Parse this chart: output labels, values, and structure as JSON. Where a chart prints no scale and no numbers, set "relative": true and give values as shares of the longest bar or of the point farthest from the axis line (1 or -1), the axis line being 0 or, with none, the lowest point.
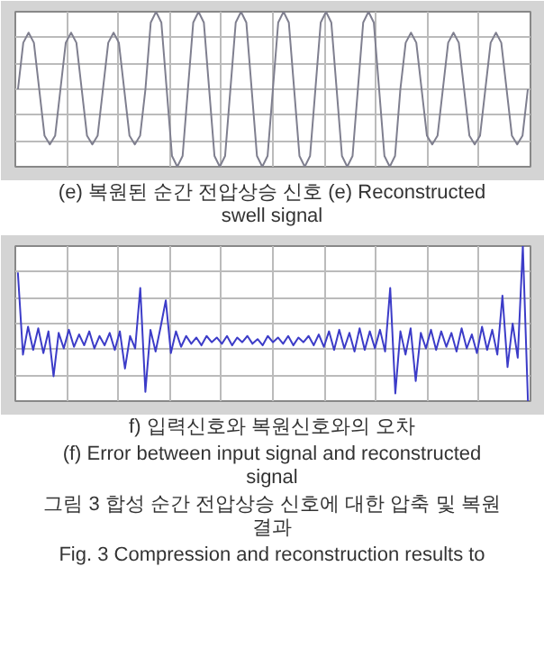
{
  "chart_data": [
    {
      "type": "line",
      "relative": true,
      "grid": true,
      "tick_labels": false,
      "categories": [
        null,
        null,
        null,
        null,
        null,
        null,
        null,
        null,
        null,
        null,
        null,
        null,
        null,
        null,
        null,
        null,
        null,
        null,
        null,
        null,
        null,
        null,
        null,
        null,
        null,
        null,
        null,
        null,
        null,
        null,
        null,
        null,
        null,
        null,
        null,
        null,
        null,
        null,
        null,
        null,
        null,
        null,
        null,
        null,
        null,
        null,
        null,
        null,
        null,
        null,
        null,
        null,
        null,
        null,
        null,
        null,
        null,
        null,
        null,
        null,
        null,
        null,
        null,
        null,
        null,
        null,
        null,
        null,
        null,
        null,
        null,
        null,
        null,
        null,
        null,
        null,
        null,
        null,
        null,
        null,
        null,
        null,
        null,
        null,
        null,
        null,
        null,
        null,
        null,
        null,
        null,
        null,
        null,
        null,
        null,
        null,
        null
      ],
      "series": [
        {
          "color": "#7f7f8f",
          "values": [
            0.5,
            0.8,
            0.865,
            0.8,
            0.5,
            0.2,
            0.144,
            0.2,
            0.5,
            0.8,
            0.865,
            0.8,
            0.5,
            0.2,
            0.144,
            0.2,
            0.5,
            0.8,
            0.865,
            0.8,
            0.5,
            0.2,
            0.144,
            0.2,
            0.5,
            0.93,
            1,
            0.93,
            0.5,
            0.07,
            0,
            0.07,
            0.5,
            0.93,
            1,
            0.93,
            0.5,
            0.07,
            0,
            0.07,
            0.5,
            0.93,
            1,
            0.93,
            0.5,
            0.07,
            0,
            0.07,
            0.5,
            0.93,
            1,
            0.93,
            0.5,
            0.07,
            0,
            0.07,
            0.5,
            0.93,
            1,
            0.93,
            0.5,
            0.07,
            0,
            0.07,
            0.5,
            0.93,
            1,
            0.93,
            0.5,
            0.07,
            0,
            0.07,
            0.5,
            0.8,
            0.865,
            0.8,
            0.5,
            0.2,
            0.144,
            0.2,
            0.5,
            0.8,
            0.865,
            0.8,
            0.5,
            0.2,
            0.144,
            0.2,
            0.5,
            0.8,
            0.865,
            0.8,
            0.5,
            0.2,
            0.144,
            0.2,
            0.5
          ]
        }
      ],
      "annotations": [
        "(e) 복원된 순간 전압상승 신호 (e) Reconstructed swell signal"
      ]
    },
    {
      "type": "line",
      "relative": true,
      "grid": true,
      "tick_labels": false,
      "categories": [
        null,
        null,
        null,
        null,
        null,
        null,
        null,
        null,
        null,
        null,
        null,
        null,
        null,
        null,
        null,
        null,
        null,
        null,
        null,
        null,
        null,
        null,
        null,
        null,
        null,
        null,
        null,
        null,
        null,
        null,
        null,
        null,
        null,
        null,
        null,
        null,
        null,
        null,
        null,
        null,
        null,
        null,
        null,
        null,
        null,
        null,
        null,
        null,
        null,
        null,
        null,
        null,
        null,
        null,
        null,
        null,
        null,
        null,
        null,
        null,
        null,
        null,
        null,
        null,
        null,
        null,
        null,
        null,
        null,
        null,
        null,
        null,
        null,
        null,
        null,
        null,
        null,
        null,
        null,
        null,
        null,
        null,
        null,
        null,
        null,
        null,
        null,
        null,
        null,
        null,
        null,
        null,
        null,
        null,
        null,
        null,
        null,
        null,
        null,
        null,
        null
      ],
      "series": [
        {
          "color": "#3c3cc8",
          "values": [
            0.83,
            0.3,
            0.48,
            0.33,
            0.47,
            0.31,
            0.45,
            0.16,
            0.44,
            0.34,
            0.46,
            0.35,
            0.43,
            0.36,
            0.45,
            0.34,
            0.42,
            0.36,
            0.44,
            0.33,
            0.45,
            0.21,
            0.42,
            0.34,
            0.73,
            0.06,
            0.46,
            0.32,
            0.48,
            0.65,
            0.31,
            0.45,
            0.35,
            0.42,
            0.37,
            0.41,
            0.36,
            0.42,
            0.38,
            0.41,
            0.37,
            0.42,
            0.36,
            0.41,
            0.38,
            0.42,
            0.37,
            0.4,
            0.36,
            0.42,
            0.38,
            0.41,
            0.37,
            0.42,
            0.36,
            0.41,
            0.38,
            0.42,
            0.36,
            0.43,
            0.35,
            0.45,
            0.33,
            0.46,
            0.34,
            0.44,
            0.32,
            0.47,
            0.33,
            0.45,
            0.34,
            0.46,
            0.32,
            0.73,
            0.05,
            0.45,
            0.3,
            0.47,
            0.13,
            0.44,
            0.34,
            0.46,
            0.33,
            0.45,
            0.35,
            0.44,
            0.32,
            0.47,
            0.34,
            0.43,
            0.31,
            0.48,
            0.33,
            0.46,
            0.3,
            0.68,
            0.22,
            0.5,
            0.28,
            1.0,
            0.0
          ]
        }
      ],
      "annotations": [
        "f) 입력신호와 복원신호와의 오차",
        "(f) Error between input signal and reconstructed signal",
        "그림 3 합성 순간 전압상승 신호에 대한 압축 및 복원 결과",
        "Fig. 3 Compression and reconstruction results to"
      ]
    }
  ]
}
